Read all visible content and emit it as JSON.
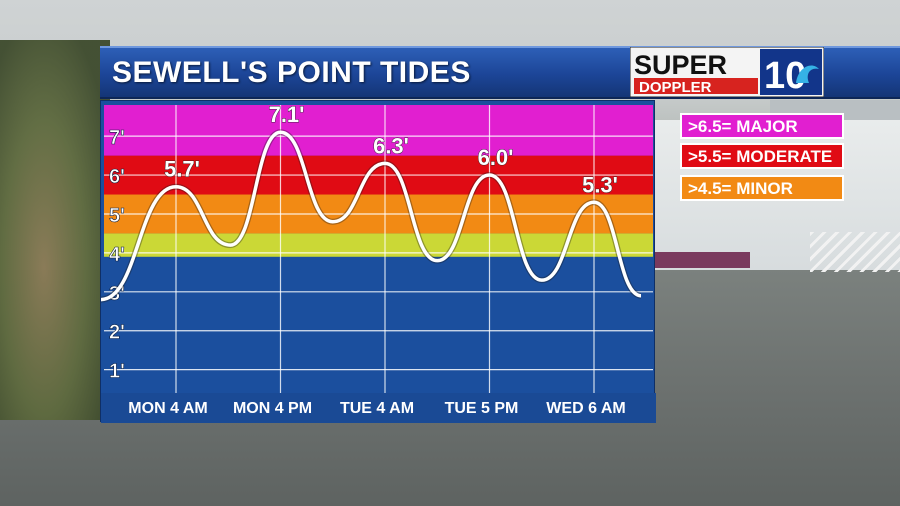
{
  "title": "SEWELL'S POINT TIDES",
  "logo": {
    "line1": "SUPER",
    "line2": "DOPPLER",
    "number": "10"
  },
  "legend": [
    {
      "label": ">6.5= MAJOR",
      "color": "#e11fd0"
    },
    {
      "label": ">5.5= MODERATE",
      "color": "#e00b14"
    },
    {
      "label": ">4.5= MINOR",
      "color": "#f28a14"
    }
  ],
  "colors": {
    "major": "#e11fd0",
    "moderate": "#e00b14",
    "minor": "#f28a14",
    "action": "#cbd836",
    "normal": "#1b4f9e",
    "curve": "#ffffff"
  },
  "chart_data": {
    "type": "line",
    "title": "SEWELL'S POINT TIDES",
    "xlabel": "",
    "ylabel": "",
    "ylim": [
      0.4,
      7.8
    ],
    "yticks": [
      {
        "value": 1,
        "label": "1'"
      },
      {
        "value": 2,
        "label": "2'"
      },
      {
        "value": 3,
        "label": "3'"
      },
      {
        "value": 4,
        "label": "4'"
      },
      {
        "value": 5,
        "label": "5'"
      },
      {
        "value": 6,
        "label": "6'"
      },
      {
        "value": 7,
        "label": "7'"
      }
    ],
    "xticks": [
      "MON 4 AM",
      "MON 4 PM",
      "TUE 4 AM",
      "TUE 5 PM",
      "WED 6 AM"
    ],
    "bands": [
      {
        "name": "normal",
        "from": 0.4,
        "to": 3.9,
        "color": "#1b4f9e"
      },
      {
        "name": "action",
        "from": 3.9,
        "to": 4.5,
        "color": "#cbd836"
      },
      {
        "name": "minor",
        "from": 4.5,
        "to": 5.5,
        "color": "#f28a14"
      },
      {
        "name": "moderate",
        "from": 5.5,
        "to": 6.5,
        "color": "#e00b14"
      },
      {
        "name": "major",
        "from": 6.5,
        "to": 7.8,
        "color": "#e11fd0"
      }
    ],
    "points": [
      {
        "x": -0.72,
        "y": 2.8
      },
      {
        "x": 0,
        "y": 5.7,
        "label": "5.7'"
      },
      {
        "x": 0.52,
        "y": 4.2
      },
      {
        "x": 1,
        "y": 7.1,
        "label": "7.1'"
      },
      {
        "x": 1.5,
        "y": 4.8
      },
      {
        "x": 2,
        "y": 6.3,
        "label": "6.3'"
      },
      {
        "x": 2.5,
        "y": 3.8
      },
      {
        "x": 3,
        "y": 6.0,
        "label": "6.0'"
      },
      {
        "x": 3.5,
        "y": 3.3
      },
      {
        "x": 4,
        "y": 5.3,
        "label": "5.3'"
      },
      {
        "x": 4.45,
        "y": 2.9
      }
    ]
  }
}
